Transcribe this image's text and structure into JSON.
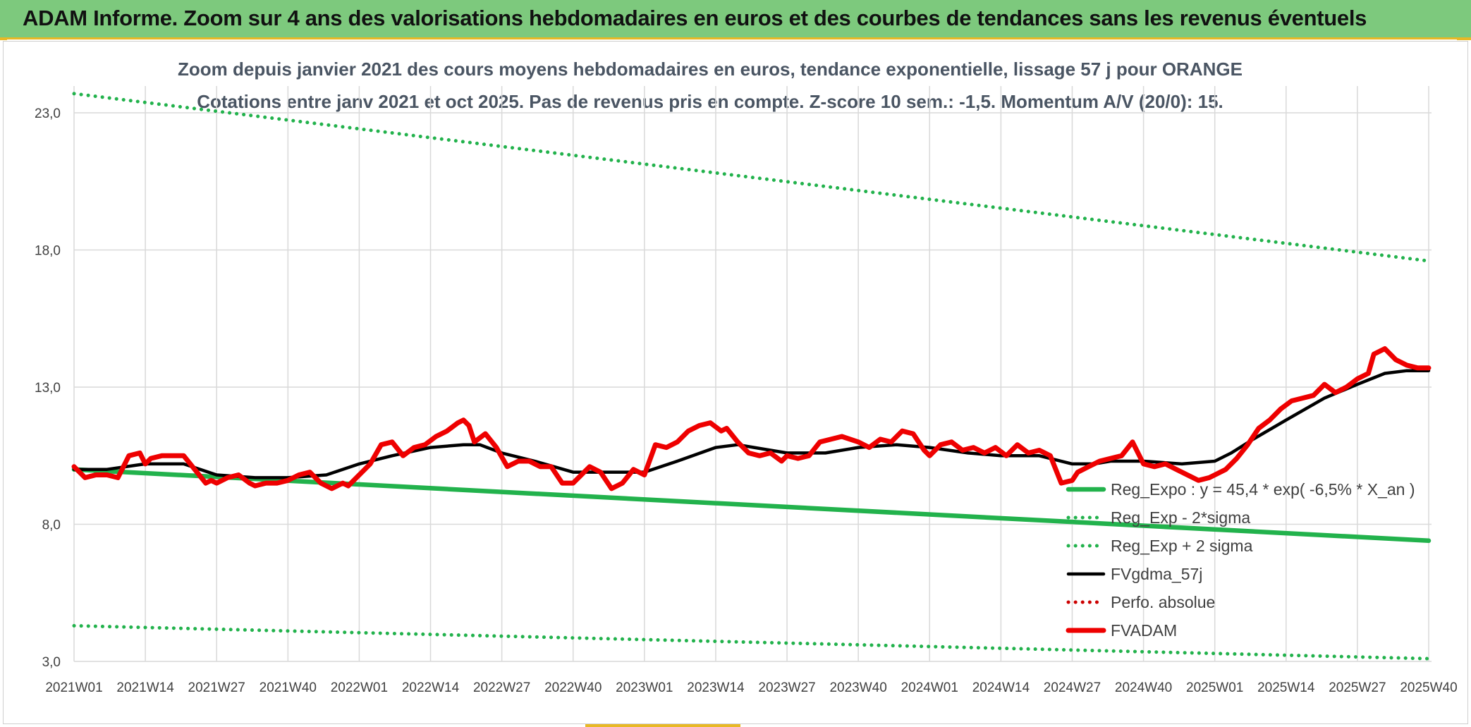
{
  "header": {
    "title": "ADAM Informe. Zoom sur 4 ans des valorisations hebdomadaires en euros et des courbes de tendances sans les revenus éventuels"
  },
  "colors": {
    "banner": "#7dc97d",
    "accent": "#e8b826",
    "trend_green": "#22b24c",
    "fvadam_red": "#ee0000",
    "gdma_black": "#000000",
    "perfo_red": "#cc0000",
    "grid": "#d9d9d9"
  },
  "chart_data": {
    "type": "line",
    "title": "Zoom depuis janvier 2021 des cours moyens hebdomadaires en euros, tendance exponentielle, lissage 57 j pour ORANGE",
    "subtitle": "Cotations entre janv 2021 et oct 2025. Pas de revenus pris en compte. Z-score 10 sem.: -1,5. Momentum A/V (20/0): 15.",
    "xlabel": "",
    "ylabel": "",
    "ylim": [
      3,
      23
    ],
    "yticks": [
      "3,0",
      "8,0",
      "13,0",
      "18,0",
      "23,0"
    ],
    "ytick_values": [
      3,
      8,
      13,
      18,
      23
    ],
    "xrange": [
      0,
      247
    ],
    "xticks": [
      "2021W01",
      "2021W14",
      "2021W27",
      "2021W40",
      "2022W01",
      "2022W14",
      "2022W27",
      "2022W40",
      "2023W01",
      "2023W14",
      "2023W27",
      "2023W40",
      "2024W01",
      "2024W14",
      "2024W27",
      "2024W40",
      "2025W01",
      "2025W14",
      "2025W27",
      "2025W40"
    ],
    "xtick_positions": [
      0,
      13,
      26,
      39,
      52,
      65,
      78,
      91,
      104,
      117,
      130,
      143,
      156,
      169,
      182,
      195,
      208,
      221,
      234,
      247
    ],
    "grid": true,
    "legend_position": "right-middle",
    "series": [
      {
        "name": "Reg_Expo : y = 45,4 * exp( -6,5% *  X_an )",
        "style": "solid",
        "color": "#22b24c",
        "x": [
          0,
          247
        ],
        "values": [
          10.0,
          7.4
        ]
      },
      {
        "name": "Reg_Exp - 2*sigma",
        "style": "dotted",
        "color": "#22b24c",
        "x": [
          0,
          247
        ],
        "values": [
          4.3,
          3.1
        ]
      },
      {
        "name": "Reg_Exp + 2 sigma",
        "style": "dotted",
        "color": "#22b24c",
        "x": [
          0,
          247
        ],
        "values": [
          23.7,
          17.6
        ]
      },
      {
        "name": "FVgdma_57j",
        "style": "solid",
        "color": "#000000",
        "x": [
          0,
          6,
          13,
          20,
          26,
          33,
          39,
          46,
          52,
          58,
          65,
          71,
          74,
          78,
          84,
          91,
          98,
          104,
          110,
          117,
          121,
          124,
          130,
          137,
          143,
          150,
          156,
          163,
          169,
          176,
          182,
          186,
          189,
          195,
          202,
          208,
          211,
          215,
          221,
          228,
          234,
          239,
          243,
          247
        ],
        "values": [
          10.0,
          10.0,
          10.2,
          10.2,
          9.8,
          9.7,
          9.7,
          9.8,
          10.2,
          10.5,
          10.8,
          10.9,
          10.9,
          10.6,
          10.3,
          9.9,
          9.9,
          9.9,
          10.3,
          10.8,
          10.9,
          10.8,
          10.6,
          10.6,
          10.8,
          10.9,
          10.8,
          10.6,
          10.5,
          10.5,
          10.2,
          10.2,
          10.3,
          10.3,
          10.2,
          10.3,
          10.6,
          11.1,
          11.8,
          12.6,
          13.1,
          13.5,
          13.6,
          13.6
        ]
      },
      {
        "name": "Perfo. absolue",
        "style": "dotted",
        "color": "#cc0000",
        "x": [],
        "values": []
      },
      {
        "name": "FVADAM",
        "style": "solid",
        "color": "#ee0000",
        "x": [
          0,
          2,
          4,
          6,
          8,
          10,
          12,
          13,
          14,
          16,
          18,
          20,
          22,
          24,
          25,
          26,
          28,
          30,
          32,
          33,
          35,
          37,
          39,
          41,
          43,
          45,
          47,
          49,
          50,
          52,
          54,
          56,
          58,
          60,
          62,
          64,
          66,
          68,
          70,
          71,
          72,
          73,
          75,
          77,
          79,
          81,
          83,
          85,
          87,
          89,
          91,
          92,
          94,
          96,
          98,
          100,
          102,
          104,
          106,
          108,
          110,
          112,
          114,
          116,
          118,
          119,
          121,
          123,
          125,
          127,
          129,
          130,
          132,
          134,
          136,
          138,
          140,
          143,
          145,
          147,
          149,
          151,
          153,
          155,
          156,
          158,
          160,
          162,
          164,
          166,
          168,
          170,
          172,
          174,
          176,
          178,
          180,
          182,
          183,
          185,
          187,
          189,
          191,
          193,
          195,
          197,
          199,
          201,
          203,
          205,
          207,
          208,
          210,
          212,
          214,
          216,
          218,
          220,
          222,
          224,
          226,
          228,
          230,
          232,
          234,
          236,
          237,
          239,
          241,
          243,
          245,
          247
        ],
        "values": [
          10.1,
          9.7,
          9.8,
          9.8,
          9.7,
          10.5,
          10.6,
          10.2,
          10.4,
          10.5,
          10.5,
          10.5,
          10.0,
          9.5,
          9.6,
          9.5,
          9.7,
          9.8,
          9.5,
          9.4,
          9.5,
          9.5,
          9.6,
          9.8,
          9.9,
          9.5,
          9.3,
          9.5,
          9.4,
          9.8,
          10.2,
          10.9,
          11.0,
          10.5,
          10.8,
          10.9,
          11.2,
          11.4,
          11.7,
          11.8,
          11.6,
          11.0,
          11.3,
          10.8,
          10.1,
          10.3,
          10.3,
          10.1,
          10.1,
          9.5,
          9.5,
          9.7,
          10.1,
          9.9,
          9.3,
          9.5,
          10.0,
          9.8,
          10.9,
          10.8,
          11.0,
          11.4,
          11.6,
          11.7,
          11.4,
          11.5,
          11.0,
          10.6,
          10.5,
          10.6,
          10.3,
          10.5,
          10.4,
          10.5,
          11.0,
          11.1,
          11.2,
          11.0,
          10.8,
          11.1,
          11.0,
          11.4,
          11.3,
          10.7,
          10.5,
          10.9,
          11.0,
          10.7,
          10.8,
          10.6,
          10.8,
          10.5,
          10.9,
          10.6,
          10.7,
          10.5,
          9.5,
          9.6,
          9.9,
          10.1,
          10.3,
          10.4,
          10.5,
          11.0,
          10.2,
          10.1,
          10.2,
          10.0,
          9.8,
          9.6,
          9.7,
          9.8,
          10.0,
          10.4,
          10.9,
          11.5,
          11.8,
          12.2,
          12.5,
          12.6,
          12.7,
          13.1,
          12.8,
          13.0,
          13.3,
          13.5,
          14.2,
          14.4,
          14.0,
          13.8,
          13.7,
          13.7
        ]
      }
    ]
  }
}
